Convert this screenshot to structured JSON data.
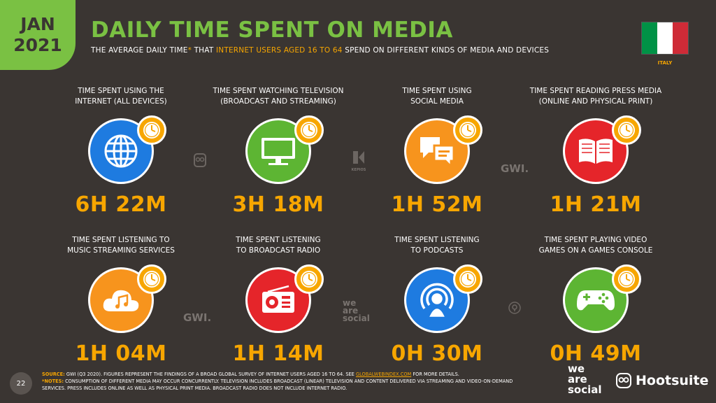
{
  "badge": {
    "month": "JAN",
    "year": "2021"
  },
  "header": {
    "title": "DAILY TIME SPENT ON MEDIA",
    "subtitle_a": "THE AVERAGE DAILY TIME",
    "subtitle_star": "*",
    "subtitle_b": " THAT ",
    "subtitle_hl": "INTERNET USERS AGED 16 TO 64",
    "subtitle_c": " SPEND ON DIFFERENT KINDS OF MEDIA AND DEVICES"
  },
  "country": {
    "label": "ITALY",
    "flag_colors": [
      "#009246",
      "#ffffff",
      "#ce2b37"
    ]
  },
  "cards": [
    {
      "label1": "TIME SPENT USING THE",
      "label2": "INTERNET (ALL DEVICES)",
      "value": "6H 22M",
      "icon": "globe-icon",
      "color": "#1e7be0"
    },
    {
      "label1": "TIME SPENT WATCHING TELEVISION",
      "label2": "(BROADCAST AND STREAMING)",
      "value": "3H 18M",
      "icon": "television-icon",
      "color": "#5db533"
    },
    {
      "label1": "TIME SPENT USING",
      "label2": "SOCIAL MEDIA",
      "value": "1H 52M",
      "icon": "chat-bubbles-icon",
      "color": "#f7941d"
    },
    {
      "label1": "TIME SPENT READING PRESS MEDIA",
      "label2": "(ONLINE AND PHYSICAL PRINT)",
      "value": "1H 21M",
      "icon": "book-icon",
      "color": "#e5252a"
    },
    {
      "label1": "TIME SPENT LISTENING TO",
      "label2": "MUSIC STREAMING SERVICES",
      "value": "1H 04M",
      "icon": "music-cloud-icon",
      "color": "#f7941d"
    },
    {
      "label1": "TIME SPENT LISTENING",
      "label2": "TO BROADCAST RADIO",
      "value": "1H 14M",
      "icon": "radio-icon",
      "color": "#e5252a"
    },
    {
      "label1": "TIME SPENT LISTENING",
      "label2": "TO PODCASTS",
      "value": "0H 30M",
      "icon": "podcast-icon",
      "color": "#1e7be0"
    },
    {
      "label1": "TIME SPENT PLAYING VIDEO",
      "label2": "GAMES ON A GAMES CONSOLE",
      "value": "0H 49M",
      "icon": "gamepad-icon",
      "color": "#5db533"
    }
  ],
  "watermarks": {
    "gwi1": "GWI.",
    "gwi2": "GWI.",
    "kepios": "KEPIOS",
    "ws_a": "we",
    "ws_b": "are",
    "ws_c": "social"
  },
  "footer": {
    "page_number": "22",
    "source_label": "SOURCE:",
    "source_text": " GWI (Q3 2020). FIGURES REPRESENT THE FINDINGS OF A BROAD GLOBAL SURVEY OF INTERNET USERS AGED 16 TO 64. SEE ",
    "source_link": "GLOBALWEBINDEX.COM",
    "source_tail": " FOR MORE DETAILS.",
    "notes_label": "*NOTES:",
    "notes_text": " CONSUMPTION OF DIFFERENT MEDIA MAY OCCUR CONCURRENTLY. TELEVISION INCLUDES BROADCAST (LINEAR) TELEVISION AND CONTENT DELIVERED VIA STREAMING AND VIDEO-ON-DEMAND SERVICES. PRESS INCLUDES ONLINE AS WELL AS PHYSICAL PRINT MEDIA. BROADCAST RADIO DOES NOT INCLUDE INTERNET RADIO."
  },
  "brands": {
    "ws_a": "we",
    "ws_b": "are",
    "ws_c": "social",
    "hootsuite": "Hootsuite"
  }
}
